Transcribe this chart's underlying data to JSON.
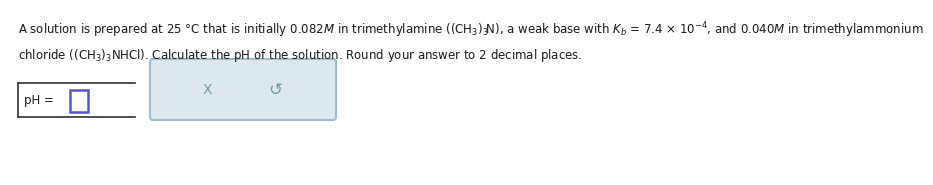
{
  "bg_color": "#ffffff",
  "text_color": "#1a1a1a",
  "line1": "A solution is prepared at 25 °C that is initially 0.082$M$ in trimethylamine $\\left(\\left(\\mathrm{CH_3}\\right)_3\\!\\mathrm{N}\\right)$, a weak base with $K_b$ = 7.4 × 10$^{-4}$, and 0.040$M$ in trimethylammonium",
  "line2": "chloride $\\left(\\left(\\mathrm{CH_3}\\right)_3\\mathrm{NHCl}\\right)$. Calculate the pH of the solution. Round your answer to 2 decimal places.",
  "ph_label": "pH = ",
  "input_box_color": "#5555cc",
  "input_box_border": "#6666dd",
  "ph_box_left_line_color": "#333333",
  "button_bg": "#dce8ed",
  "button_border": "#9bbfcc",
  "button_x": "X",
  "button_undo": "↺",
  "button_symbol_color": "#6a9aaa",
  "font_size_main": 8.5,
  "font_size_ph": 8.5
}
